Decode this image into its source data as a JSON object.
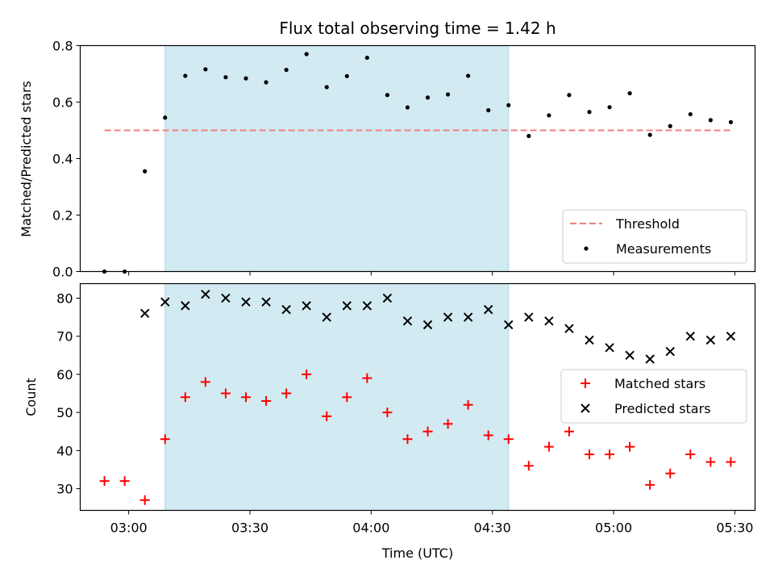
{
  "chart_data": [
    {
      "type": "scatter",
      "title": "Flux total observing time = 1.42 h",
      "xlabel": "",
      "ylabel": "Matched/Predicted stars",
      "ylim": [
        0,
        0.8
      ],
      "yticks": [
        "0.0",
        "0.2",
        "0.4",
        "0.6",
        "0.8"
      ],
      "grid": false,
      "legend_position": "lower-right",
      "shaded_region": {
        "start": "03:09",
        "end": "04:34",
        "color": "#add8e6"
      },
      "threshold": {
        "name": "Threshold",
        "value": 0.5,
        "x_range": [
          "02:54",
          "05:29"
        ],
        "color": "#f08080"
      },
      "series": [
        {
          "name": "Measurements",
          "color": "#000000",
          "points": [
            {
              "x": "02:54",
              "y": 0.0
            },
            {
              "x": "02:59",
              "y": 0.0
            },
            {
              "x": "03:04",
              "y": 0.355
            },
            {
              "x": "03:09",
              "y": 0.545
            },
            {
              "x": "03:14",
              "y": 0.693
            },
            {
              "x": "03:19",
              "y": 0.716
            },
            {
              "x": "03:24",
              "y": 0.688
            },
            {
              "x": "03:29",
              "y": 0.684
            },
            {
              "x": "03:34",
              "y": 0.67
            },
            {
              "x": "03:39",
              "y": 0.714
            },
            {
              "x": "03:44",
              "y": 0.77
            },
            {
              "x": "03:49",
              "y": 0.653
            },
            {
              "x": "03:54",
              "y": 0.692
            },
            {
              "x": "03:59",
              "y": 0.757
            },
            {
              "x": "04:04",
              "y": 0.625
            },
            {
              "x": "04:09",
              "y": 0.581
            },
            {
              "x": "04:14",
              "y": 0.616
            },
            {
              "x": "04:19",
              "y": 0.627
            },
            {
              "x": "04:24",
              "y": 0.693
            },
            {
              "x": "04:29",
              "y": 0.571
            },
            {
              "x": "04:34",
              "y": 0.589
            },
            {
              "x": "04:39",
              "y": 0.48
            },
            {
              "x": "04:44",
              "y": 0.553
            },
            {
              "x": "04:49",
              "y": 0.625
            },
            {
              "x": "04:54",
              "y": 0.565
            },
            {
              "x": "04:59",
              "y": 0.582
            },
            {
              "x": "05:04",
              "y": 0.631
            },
            {
              "x": "05:09",
              "y": 0.484
            },
            {
              "x": "05:14",
              "y": 0.515
            },
            {
              "x": "05:19",
              "y": 0.557
            },
            {
              "x": "05:24",
              "y": 0.536
            },
            {
              "x": "05:29",
              "y": 0.529
            }
          ]
        }
      ]
    },
    {
      "type": "scatter",
      "title": "",
      "xlabel": "Time (UTC)",
      "ylabel": "Count",
      "ylim": [
        24.3,
        83.8
      ],
      "xlim": [
        "02:48",
        "05:35"
      ],
      "yticks": [
        "30",
        "40",
        "50",
        "60",
        "70",
        "80"
      ],
      "xticks": [
        "03:00",
        "03:30",
        "04:00",
        "04:30",
        "05:00",
        "05:30"
      ],
      "grid": false,
      "legend_position": "center-right",
      "shaded_region": {
        "start": "03:09",
        "end": "04:34",
        "color": "#add8e6"
      },
      "series": [
        {
          "name": "Matched stars",
          "marker": "plus",
          "color": "#ff0000",
          "points": [
            {
              "x": "02:54",
              "y": 32
            },
            {
              "x": "02:59",
              "y": 32
            },
            {
              "x": "03:04",
              "y": 27
            },
            {
              "x": "03:09",
              "y": 43
            },
            {
              "x": "03:14",
              "y": 54
            },
            {
              "x": "03:19",
              "y": 58
            },
            {
              "x": "03:24",
              "y": 55
            },
            {
              "x": "03:29",
              "y": 54
            },
            {
              "x": "03:34",
              "y": 53
            },
            {
              "x": "03:39",
              "y": 55
            },
            {
              "x": "03:44",
              "y": 60
            },
            {
              "x": "03:49",
              "y": 49
            },
            {
              "x": "03:54",
              "y": 54
            },
            {
              "x": "03:59",
              "y": 59
            },
            {
              "x": "04:04",
              "y": 50
            },
            {
              "x": "04:09",
              "y": 43
            },
            {
              "x": "04:14",
              "y": 45
            },
            {
              "x": "04:19",
              "y": 47
            },
            {
              "x": "04:24",
              "y": 52
            },
            {
              "x": "04:29",
              "y": 44
            },
            {
              "x": "04:34",
              "y": 43
            },
            {
              "x": "04:39",
              "y": 36
            },
            {
              "x": "04:44",
              "y": 41
            },
            {
              "x": "04:49",
              "y": 45
            },
            {
              "x": "04:54",
              "y": 39
            },
            {
              "x": "04:59",
              "y": 39
            },
            {
              "x": "05:04",
              "y": 41
            },
            {
              "x": "05:09",
              "y": 31
            },
            {
              "x": "05:14",
              "y": 34
            },
            {
              "x": "05:19",
              "y": 39
            },
            {
              "x": "05:24",
              "y": 37
            },
            {
              "x": "05:29",
              "y": 37
            }
          ]
        },
        {
          "name": "Predicted stars",
          "marker": "x",
          "color": "#000000",
          "points": [
            {
              "x": "03:04",
              "y": 76
            },
            {
              "x": "03:09",
              "y": 79
            },
            {
              "x": "03:14",
              "y": 78
            },
            {
              "x": "03:19",
              "y": 81
            },
            {
              "x": "03:24",
              "y": 80
            },
            {
              "x": "03:29",
              "y": 79
            },
            {
              "x": "03:34",
              "y": 79
            },
            {
              "x": "03:39",
              "y": 77
            },
            {
              "x": "03:44",
              "y": 78
            },
            {
              "x": "03:49",
              "y": 75
            },
            {
              "x": "03:54",
              "y": 78
            },
            {
              "x": "03:59",
              "y": 78
            },
            {
              "x": "04:04",
              "y": 80
            },
            {
              "x": "04:09",
              "y": 74
            },
            {
              "x": "04:14",
              "y": 73
            },
            {
              "x": "04:19",
              "y": 75
            },
            {
              "x": "04:24",
              "y": 75
            },
            {
              "x": "04:29",
              "y": 77
            },
            {
              "x": "04:34",
              "y": 73
            },
            {
              "x": "04:39",
              "y": 75
            },
            {
              "x": "04:44",
              "y": 74
            },
            {
              "x": "04:49",
              "y": 72
            },
            {
              "x": "04:54",
              "y": 69
            },
            {
              "x": "04:59",
              "y": 67
            },
            {
              "x": "05:04",
              "y": 65
            },
            {
              "x": "05:09",
              "y": 64
            },
            {
              "x": "05:14",
              "y": 66
            },
            {
              "x": "05:19",
              "y": 70
            },
            {
              "x": "05:24",
              "y": 69
            },
            {
              "x": "05:29",
              "y": 70
            }
          ]
        }
      ]
    }
  ]
}
